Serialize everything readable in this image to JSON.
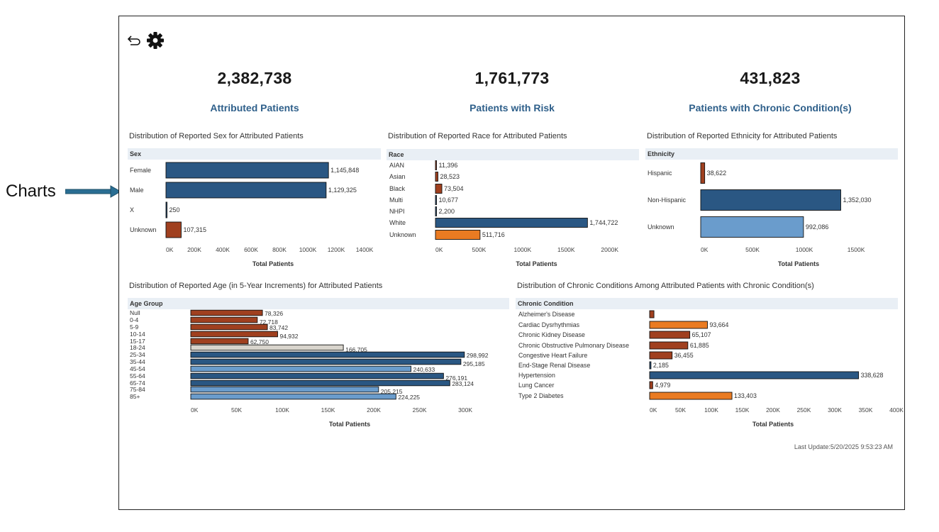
{
  "callout_label": "Charts",
  "colors": {
    "navy": "#2a5783",
    "light_blue": "#6a9ccc",
    "rust": "#a0401f",
    "orange": "#ea7b22",
    "gray": "#d8d4cc",
    "dark_text": "#1a1a1a",
    "link_blue": "#2e5f8a"
  },
  "kpis": [
    {
      "value": "2,382,738",
      "label": "Attributed Patients"
    },
    {
      "value": "1,761,773",
      "label": "Patients with Risk"
    },
    {
      "value": "431,823",
      "label": "Patients with Chronic Condition(s)"
    }
  ],
  "chart_data": [
    {
      "id": "sex",
      "type": "bar",
      "orientation": "horizontal",
      "title": "Distribution of Reported Sex for Attributed Patients",
      "dimension": "Sex",
      "categories": [
        "Female",
        "Male",
        "X",
        "Unknown"
      ],
      "values": [
        1145848,
        1129325,
        250,
        107315
      ],
      "labels": [
        "1,145,848",
        "1,129,325",
        "250",
        "107,315"
      ],
      "colors": [
        "#2a5783",
        "#2a5783",
        "#2a5783",
        "#a0401f"
      ],
      "xlabel": "Total Patients",
      "xlim": [
        0,
        1400000
      ],
      "ticks": [
        0,
        200000,
        400000,
        600000,
        800000,
        1000000,
        1200000,
        1400000
      ],
      "tick_labels": [
        "0K",
        "200K",
        "400K",
        "600K",
        "800K",
        "1000K",
        "1200K",
        "1400K"
      ]
    },
    {
      "id": "race",
      "type": "bar",
      "orientation": "horizontal",
      "title": "Distribution of Reported Race for Attributed Patients",
      "dimension": "Race",
      "categories": [
        "AIAN",
        "Asian",
        "Black",
        "Multi",
        "NHPI",
        "White",
        "Unknown"
      ],
      "values": [
        11396,
        28523,
        73504,
        10677,
        2200,
        1744722,
        511716
      ],
      "labels": [
        "11,396",
        "28,523",
        "73,504",
        "10,677",
        "2,200",
        "1,744,722",
        "511,716"
      ],
      "colors": [
        "#a0401f",
        "#a0401f",
        "#a0401f",
        "#2a5783",
        "#2a5783",
        "#2a5783",
        "#ea7b22"
      ],
      "xlabel": "Total Patients",
      "xlim": [
        0,
        2100000
      ],
      "ticks": [
        0,
        500000,
        1000000,
        1500000,
        2000000
      ],
      "tick_labels": [
        "0K",
        "500K",
        "1000K",
        "1500K",
        "2000K"
      ]
    },
    {
      "id": "ethnicity",
      "type": "bar",
      "orientation": "horizontal",
      "title": "Distribution of Reported Ethnicity for Attributed Patients",
      "dimension": "Ethnicity",
      "categories": [
        "Hispanic",
        "Non-Hispanic",
        "Unknown"
      ],
      "values": [
        38622,
        1352030,
        992086
      ],
      "labels": [
        "38,622",
        "1,352,030",
        "992,086"
      ],
      "colors": [
        "#a0401f",
        "#2a5783",
        "#6a9ccc"
      ],
      "xlabel": "Total Patients",
      "xlim": [
        0,
        1650000
      ],
      "ticks": [
        0,
        500000,
        1000000,
        1500000
      ],
      "tick_labels": [
        "0K",
        "500K",
        "1000K",
        "1500K"
      ]
    },
    {
      "id": "age",
      "type": "bar",
      "orientation": "horizontal",
      "title": "Distribution of Reported Age (in 5-Year Increments) for Attributed Patients",
      "dimension": "Age Group",
      "categories": [
        "Null",
        "0-4",
        "5-9",
        "10-14",
        "15-17",
        "18-24",
        "25-34",
        "35-44",
        "45-54",
        "55-64",
        "65-74",
        "75-84",
        "85+"
      ],
      "values": [
        78326,
        72718,
        83742,
        94932,
        62750,
        166705,
        298992,
        295185,
        240633,
        276191,
        283124,
        205215,
        224225
      ],
      "labels": [
        "78,326",
        "72,718",
        "83,742",
        "94,932",
        "62,750",
        "166,705",
        "298,992",
        "295,185",
        "240,633",
        "276,191",
        "283,124",
        "205,215",
        "224,225"
      ],
      "colors": [
        "#a0401f",
        "#a0401f",
        "#a0401f",
        "#a0401f",
        "#a0401f",
        "#d8d4cc",
        "#2a5783",
        "#2a5783",
        "#6a9ccc",
        "#2a5783",
        "#2a5783",
        "#6a9ccc",
        "#6a9ccc"
      ],
      "xlabel": "Total Patients",
      "xlim": [
        0,
        310000
      ],
      "ticks": [
        0,
        50000,
        100000,
        150000,
        200000,
        250000,
        300000
      ],
      "tick_labels": [
        "0K",
        "50K",
        "100K",
        "150K",
        "200K",
        "250K",
        "300K"
      ]
    },
    {
      "id": "chronic",
      "type": "bar",
      "orientation": "horizontal",
      "title": "Distribution of Chronic Conditions Among Attributed Patients with Chronic Condition(s)",
      "dimension": "Chronic Condition",
      "categories": [
        "Alzheimer's Disease",
        "Cardiac Dysrhythmias",
        "Chronic Kidney Disease",
        "Chronic Obstructive Pulmonary Disease",
        "Congestive Heart Failure",
        "End-Stage Renal Disease",
        "Hypertension",
        "Lung Cancer",
        "Type 2 Diabetes"
      ],
      "values": [
        7000,
        93664,
        65107,
        61885,
        36455,
        2185,
        338628,
        4979,
        133403
      ],
      "labels": [
        "",
        "93,664",
        "65,107",
        "61,885",
        "36,455",
        "2,185",
        "338,628",
        "4,979",
        "133,403"
      ],
      "colors": [
        "#a0401f",
        "#ea7b22",
        "#a0401f",
        "#a0401f",
        "#a0401f",
        "#2a5783",
        "#2a5783",
        "#a0401f",
        "#ea7b22"
      ],
      "xlabel": "Total Patients",
      "xlim": [
        0,
        400000
      ],
      "ticks": [
        0,
        50000,
        100000,
        150000,
        200000,
        250000,
        300000,
        350000,
        400000
      ],
      "tick_labels": [
        "0K",
        "50K",
        "100K",
        "150K",
        "200K",
        "250K",
        "300K",
        "350K",
        "400K"
      ]
    }
  ],
  "footer": {
    "last_update": "Last Update:5/20/2025 9:53:23 AM"
  }
}
